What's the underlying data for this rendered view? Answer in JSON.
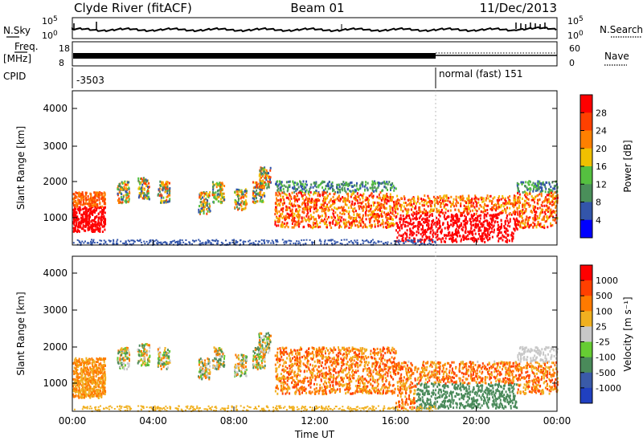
{
  "header": {
    "station": "Clyde River (fitACF)",
    "beam": "Beam 01",
    "date": "11/Dec/2013"
  },
  "top_panels": {
    "nsky_label": "N.Sky",
    "nsearch_label": "N.Search",
    "freq_label_1": "Freq.",
    "freq_label_2": "[MHz]",
    "nave_label": "Nave",
    "cpid_label": "CPID",
    "sky_ticks": [
      "10^5",
      "10^0"
    ],
    "search_ticks": [
      "10^5",
      "10^0"
    ],
    "freq_ticks": [
      "18",
      "8"
    ],
    "nave_ticks": [
      "60",
      "0"
    ],
    "cpid_left": "-3503",
    "cpid_right": "normal (fast) 151"
  },
  "chart_data": [
    {
      "type": "heatmap",
      "name": "power",
      "ylabel": "Slant Range [km]",
      "yticks": [
        "1000",
        "2000",
        "3000",
        "4000"
      ],
      "ylim": [
        200,
        4500
      ],
      "xlim": [
        0,
        24
      ],
      "colorbar_label": "Power [dB]",
      "colorbar_ticks": [
        "4",
        "8",
        "12",
        "16",
        "20",
        "24",
        "28"
      ],
      "colors": [
        "#0000ff",
        "#3355aa",
        "#4a8f5a",
        "#55c040",
        "#f0c000",
        "#ff8000",
        "#ff4000",
        "#ff0000"
      ]
    },
    {
      "type": "heatmap",
      "name": "velocity",
      "ylabel": "Slant Range [km]",
      "yticks": [
        "1000",
        "2000",
        "3000",
        "4000"
      ],
      "ylim": [
        200,
        4500
      ],
      "xlim": [
        0,
        24
      ],
      "colorbar_label": "Velocity [m s⁻¹]",
      "colorbar_ticks": [
        "1000",
        "500",
        "100",
        "25",
        "-25",
        "-100",
        "-500",
        "-1000"
      ],
      "colors": [
        "#2040c0",
        "#3a5aa8",
        "#4a8a5a",
        "#66cc33",
        "#c8c8c8",
        "#f0b020",
        "#ff7a00",
        "#ff4000",
        "#ff0000"
      ]
    }
  ],
  "xaxis": {
    "label": "Time UT",
    "ticks": [
      "00:00",
      "04:00",
      "08:00",
      "12:00",
      "16:00",
      "20:00",
      "00:00"
    ]
  }
}
